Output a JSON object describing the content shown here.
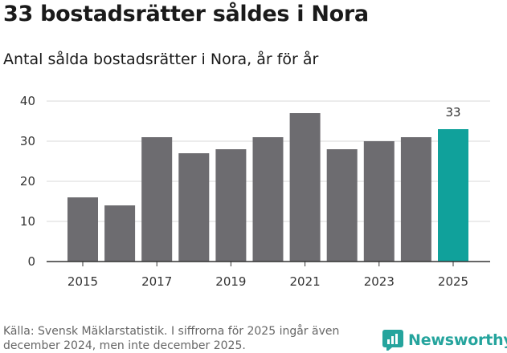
{
  "header": {
    "title": "33 bostadsrätter såldes i Nora",
    "subtitle": "Antal sålda bostadsrätter i Nora, år för år"
  },
  "footer": {
    "source": "Källa: Svensk Mäklarstatistik. I siffrorna för 2025 ingår även december 2024, men inte december 2025.",
    "brand": "Newsworthy"
  },
  "colors": {
    "bar": "#6d6c70",
    "highlight": "#10a19b",
    "grid": "#d9d9d9",
    "axis": "#333333",
    "brand": "#25a49d"
  },
  "chart_data": {
    "type": "bar",
    "title": "33 bostadsrätter såldes i Nora",
    "subtitle": "Antal sålda bostadsrätter i Nora, år för år",
    "categories": [
      "2015",
      "2016",
      "2017",
      "2018",
      "2019",
      "2020",
      "2021",
      "2022",
      "2023",
      "2024",
      "2025"
    ],
    "values": [
      16,
      14,
      31,
      27,
      28,
      31,
      37,
      28,
      30,
      31,
      33
    ],
    "x_tick_labels": [
      "2015",
      "2017",
      "2019",
      "2021",
      "2023",
      "2025"
    ],
    "y_ticks": [
      "0",
      "10",
      "20",
      "30",
      "40"
    ],
    "ylim": [
      0,
      40
    ],
    "highlight_category": "2025",
    "highlight_label": "33",
    "grid": true,
    "xlabel": "",
    "ylabel": ""
  }
}
